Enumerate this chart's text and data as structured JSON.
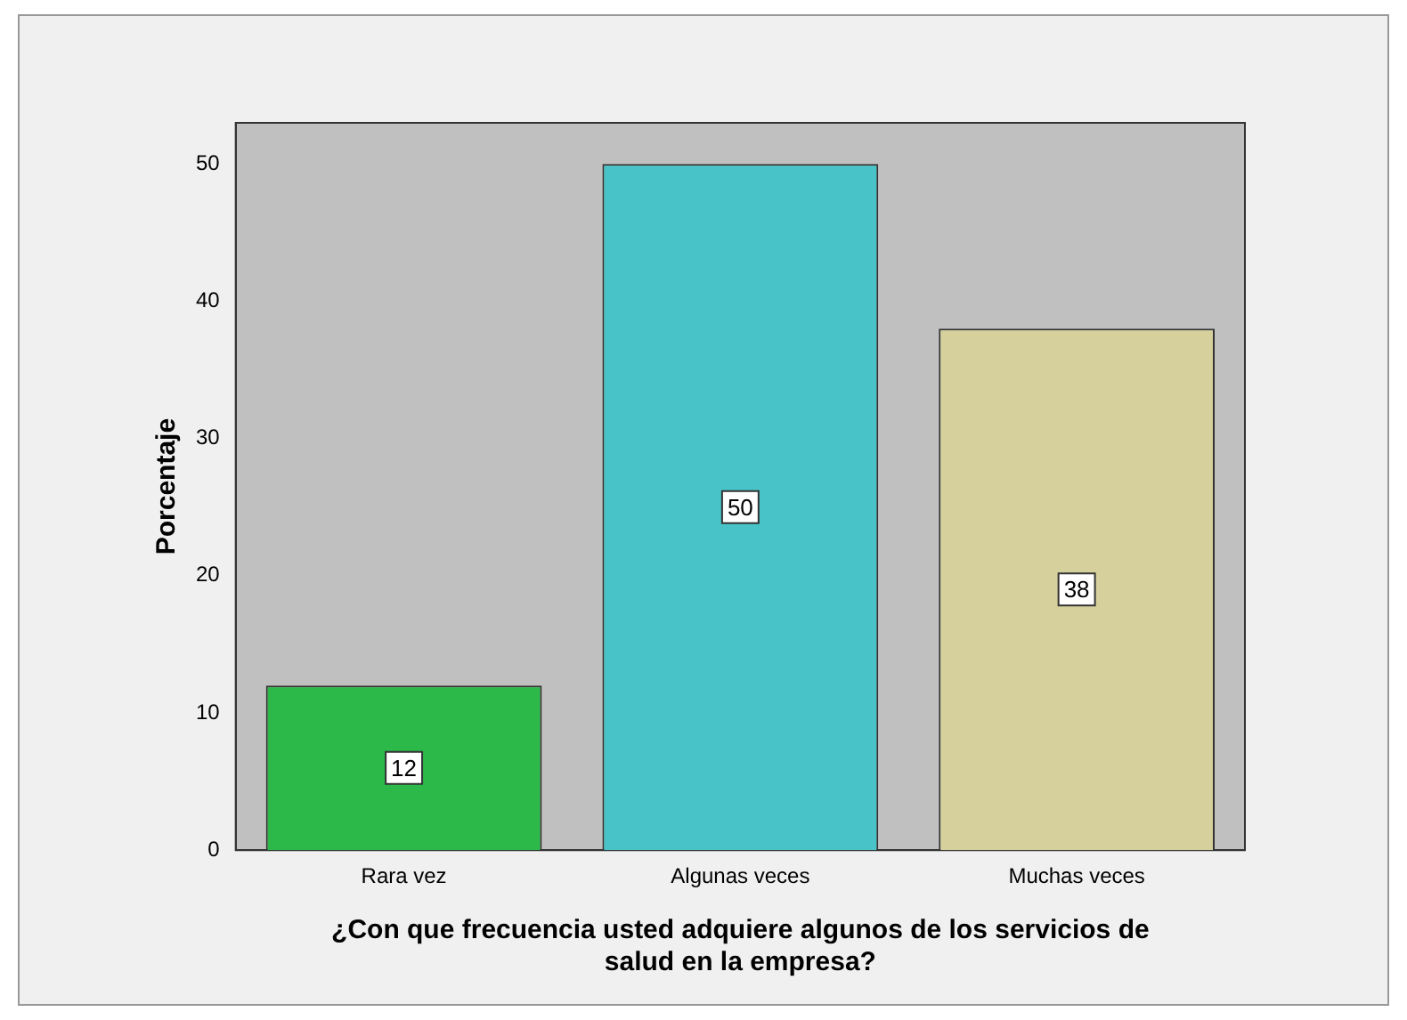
{
  "chart_data": {
    "type": "bar",
    "xlabel": "¿Con que frecuencia usted adquiere algunos de los servicios de salud en la empresa?",
    "ylabel": "Porcentaje",
    "categories": [
      "Rara vez",
      "Algunas veces",
      "Muchas veces"
    ],
    "values": [
      12,
      50,
      38
    ],
    "colors": [
      "#2db84a",
      "#48c4c8",
      "#d6d09c"
    ],
    "ylim": [
      0,
      53
    ],
    "yticks": [
      0,
      10,
      20,
      30,
      40,
      50
    ],
    "grid": false,
    "legend": false,
    "data_labels": true
  }
}
